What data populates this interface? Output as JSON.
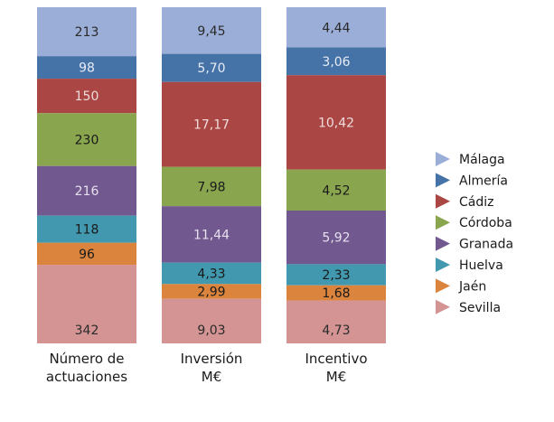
{
  "chart_data": {
    "type": "bar",
    "stacked": "percent",
    "categories": [
      [
        "Número de",
        "actuaciones"
      ],
      [
        "Inversión",
        "M€"
      ],
      [
        "Incentivo",
        "M€"
      ]
    ],
    "series": [
      {
        "name": "Málaga",
        "color": "#9aaed8",
        "values": [
          213,
          9.45,
          4.44
        ],
        "labels": [
          "213",
          "9,45",
          "4,44"
        ],
        "label_color": "#2a2a2a"
      },
      {
        "name": "Almería",
        "color": "#4572a7",
        "values": [
          98,
          5.7,
          3.06
        ],
        "labels": [
          "98",
          "5,70",
          "3,06"
        ],
        "label_color": "#e8ecf6"
      },
      {
        "name": "Cádiz",
        "color": "#aa4643",
        "values": [
          150,
          17.17,
          10.42
        ],
        "labels": [
          "150",
          "17,17",
          "10,42"
        ],
        "label_color": "#f0dcdc"
      },
      {
        "name": "Córdoba",
        "color": "#89a54e",
        "values": [
          230,
          7.98,
          4.52
        ],
        "labels": [
          "230",
          "7,98",
          "4,52"
        ],
        "label_color": "#1a1a1a"
      },
      {
        "name": "Granada",
        "color": "#71588f",
        "values": [
          216,
          11.44,
          5.92
        ],
        "labels": [
          "216",
          "11,44",
          "5,92"
        ],
        "label_color": "#e6e0ee"
      },
      {
        "name": "Huelva",
        "color": "#4198af",
        "values": [
          118,
          4.33,
          2.33
        ],
        "labels": [
          "118",
          "4,33",
          "2,33"
        ],
        "label_color": "#1a1a1a"
      },
      {
        "name": "Jaén",
        "color": "#db843d",
        "values": [
          96,
          2.99,
          1.68
        ],
        "labels": [
          "96",
          "2,99",
          "1,68"
        ],
        "label_color": "#1a1a1a"
      },
      {
        "name": "Sevilla",
        "color": "#d49494",
        "values": [
          342,
          9.03,
          4.73
        ],
        "labels": [
          "342",
          "9,03",
          "4,73"
        ],
        "label_color": "#2a2a2a"
      }
    ],
    "order": "top-to-bottom",
    "legend": "right",
    "title": "",
    "xlabel": "",
    "ylabel": ""
  }
}
